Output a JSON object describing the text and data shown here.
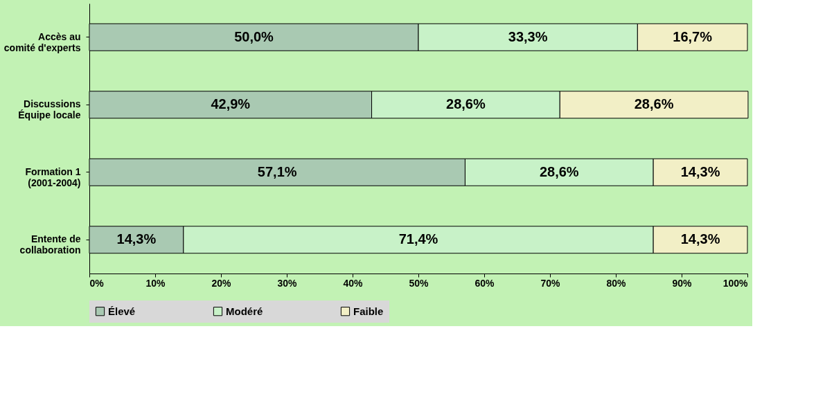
{
  "chart_data": {
    "type": "bar",
    "orientation": "horizontal",
    "stacked": true,
    "categories": [
      "Accès au\ncomité d'experts",
      "Discussions\nÉquipe locale",
      "Formation 1\n(2001-2004)",
      "Entente de\ncollaboration"
    ],
    "series": [
      {
        "name": "Élevé",
        "color": "#a9c9b2",
        "values": [
          50.0,
          42.9,
          57.1,
          14.3
        ],
        "value_labels": [
          "50,0%",
          "42,9%",
          "57,1%",
          "14,3%"
        ]
      },
      {
        "name": "Modéré",
        "color": "#c8f2c8",
        "values": [
          33.3,
          28.6,
          28.6,
          71.4
        ],
        "value_labels": [
          "33,3%",
          "28,6%",
          "28,6%",
          "71,4%"
        ]
      },
      {
        "name": "Faible",
        "color": "#f2efc6",
        "values": [
          16.7,
          28.6,
          14.3,
          14.3
        ],
        "value_labels": [
          "16,7%",
          "28,6%",
          "14,3%",
          "14,3%"
        ]
      }
    ],
    "xlim": [
      0,
      100
    ],
    "xticks": [
      {
        "value": 0,
        "label": "0%"
      },
      {
        "value": 10,
        "label": "10%"
      },
      {
        "value": 20,
        "label": "20%"
      },
      {
        "value": 30,
        "label": "30%"
      },
      {
        "value": 40,
        "label": "40%"
      },
      {
        "value": 50,
        "label": "50%"
      },
      {
        "value": 60,
        "label": "60%"
      },
      {
        "value": 70,
        "label": "70%"
      },
      {
        "value": 80,
        "label": "80%"
      },
      {
        "value": 90,
        "label": "90%"
      },
      {
        "value": 100,
        "label": "100%"
      }
    ],
    "grid": false,
    "legend": "bottom"
  }
}
